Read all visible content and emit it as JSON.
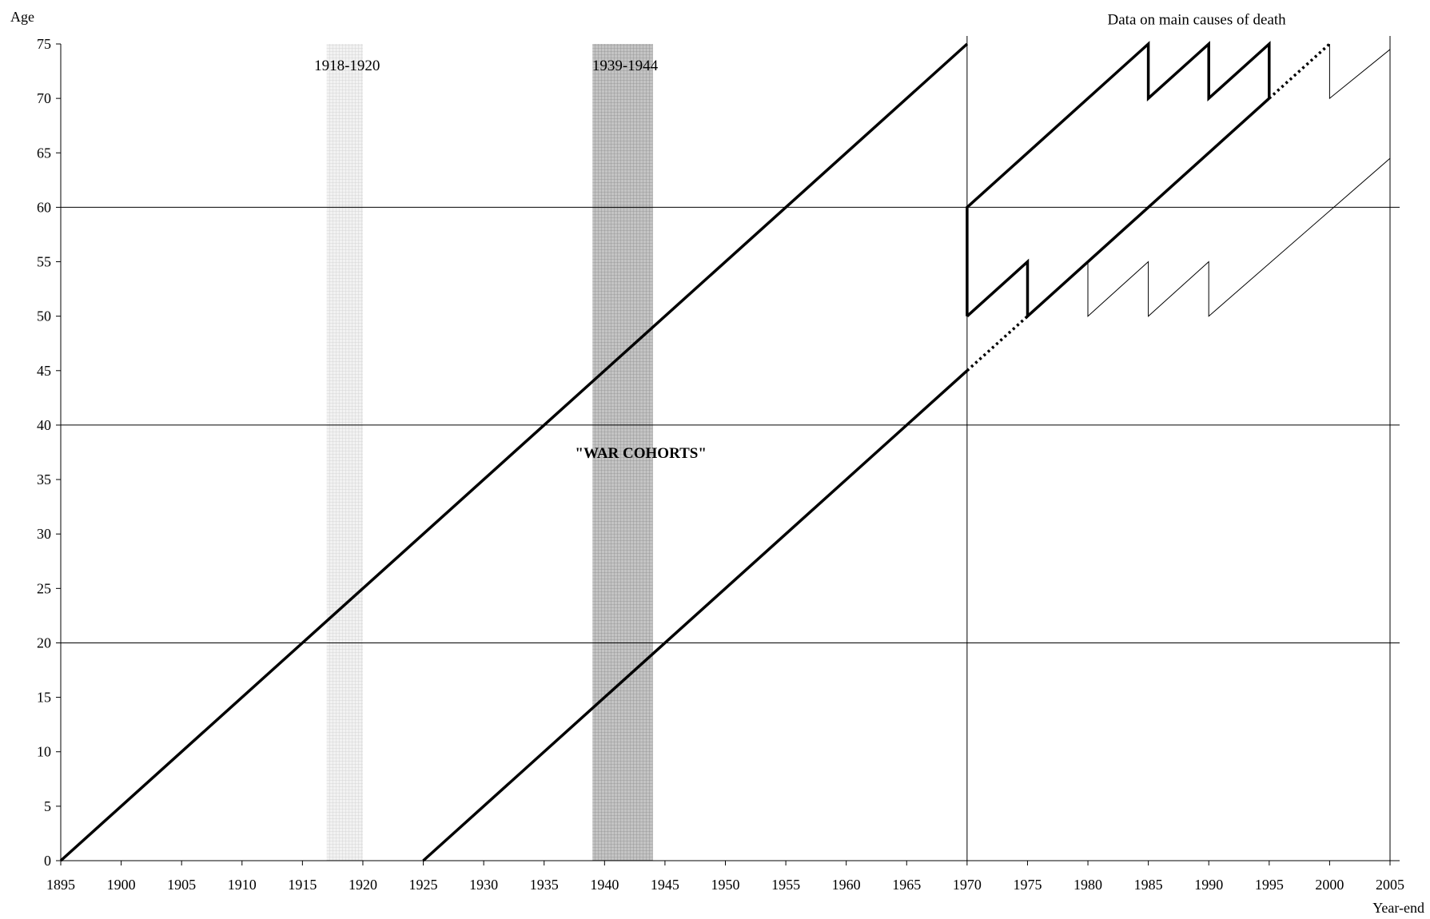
{
  "chart_data": {
    "type": "line",
    "title": "",
    "xlabel": "Year-end",
    "ylabel": "Age",
    "xlim": [
      1895,
      2005
    ],
    "ylim": [
      0,
      75
    ],
    "x_ticks": [
      "1895",
      "1900",
      "1905",
      "1910",
      "1915",
      "1920",
      "1925",
      "1930",
      "1935",
      "1940",
      "1945",
      "1950",
      "1955",
      "1960",
      "1965",
      "1970",
      "1975",
      "1980",
      "1985",
      "1990",
      "1995",
      "2000",
      "2005"
    ],
    "y_ticks": [
      "0",
      "5",
      "10",
      "15",
      "20",
      "25",
      "30",
      "35",
      "40",
      "45",
      "50",
      "55",
      "60",
      "65",
      "70",
      "75"
    ],
    "horizontal_gridlines_y": [
      20,
      40,
      60
    ],
    "vertical_gridlines_x": [
      1970,
      2005
    ],
    "shaded_periods": [
      {
        "label": "1918-1920",
        "x_start": 1917,
        "x_end": 1920,
        "shade": "light"
      },
      {
        "label": "1939-1944",
        "x_start": 1939,
        "x_end": 1944,
        "shade": "dark"
      }
    ],
    "annotations": [
      {
        "text": "\"WAR COHORTS\"",
        "x": 1943,
        "y": 37,
        "bold": true
      },
      {
        "text": "Data on main causes of death",
        "x": 1989,
        "y": 76.8,
        "bold": false
      }
    ],
    "series": [
      {
        "style": "thick",
        "points": [
          [
            1895,
            0
          ],
          [
            1970,
            75
          ]
        ]
      },
      {
        "style": "thick",
        "points": [
          [
            1925,
            0
          ],
          [
            1970,
            45
          ]
        ]
      },
      {
        "style": "dotted",
        "points": [
          [
            1970,
            45
          ],
          [
            1975,
            50
          ]
        ]
      },
      {
        "style": "thick",
        "points": [
          [
            1970,
            50
          ],
          [
            1975,
            55
          ],
          [
            1975,
            50
          ],
          [
            1995,
            70
          ]
        ]
      },
      {
        "style": "thick",
        "points": [
          [
            1970,
            50
          ],
          [
            1970,
            60
          ],
          [
            1985,
            75
          ],
          [
            1985,
            70
          ],
          [
            1990,
            75
          ],
          [
            1990,
            70
          ],
          [
            1995,
            75
          ],
          [
            1995,
            70
          ]
        ]
      },
      {
        "style": "dotted",
        "points": [
          [
            1995,
            70
          ],
          [
            2000,
            75
          ]
        ]
      },
      {
        "style": "thin",
        "points": [
          [
            2000,
            75
          ],
          [
            2000,
            70
          ],
          [
            2005,
            74.5
          ],
          [
            2005,
            64.5
          ],
          [
            1990,
            50
          ],
          [
            1990,
            55
          ],
          [
            1985,
            50
          ],
          [
            1985,
            55
          ],
          [
            1980,
            50
          ],
          [
            1980,
            55
          ]
        ]
      }
    ]
  }
}
